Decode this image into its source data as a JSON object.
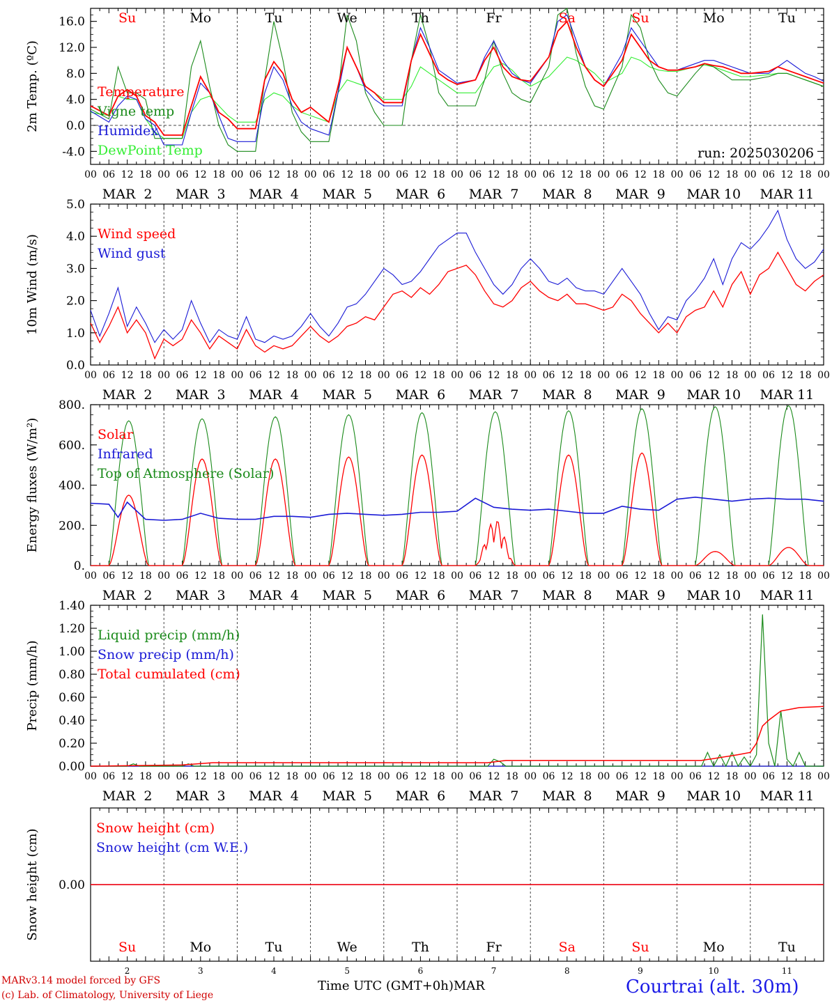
{
  "chart_data": [
    {
      "type": "line",
      "ylabel": "2m Temp. (ºC)",
      "ylim": [
        -6,
        18
      ],
      "y_ticks": [
        "-4.0",
        "0.0",
        "4.0",
        "8.0",
        "12.0",
        "16.0"
      ],
      "annotation": "run: 2025030206",
      "x_hours": [
        0,
        6,
        9,
        12,
        15,
        18,
        21,
        24,
        30,
        33,
        36,
        39,
        42,
        45,
        48,
        54,
        57,
        60,
        63,
        66,
        69,
        72,
        78,
        81,
        84,
        87,
        90,
        93,
        96,
        102,
        105,
        108,
        111,
        114,
        117,
        120,
        126,
        129,
        132,
        135,
        138,
        141,
        144,
        150,
        153,
        156,
        159,
        162,
        165,
        168,
        174,
        177,
        180,
        183,
        186,
        189,
        192,
        198,
        201,
        204,
        207,
        210,
        213,
        216,
        222,
        225,
        228,
        231,
        234,
        237,
        240
      ],
      "series": [
        {
          "name": "Temperature",
          "color": "#ff0000",
          "values": [
            3,
            1.5,
            4.5,
            5.5,
            4.5,
            1.5,
            0.5,
            -1.5,
            -1.5,
            3,
            7.5,
            5,
            2,
            1,
            -0.5,
            -0.5,
            7,
            9.8,
            8,
            4,
            2,
            2.8,
            0.5,
            6,
            12,
            9,
            6,
            5,
            3.5,
            3.5,
            10,
            14,
            11,
            8,
            7,
            6.3,
            7,
            10,
            12,
            9,
            7.5,
            7,
            6.8,
            10.5,
            14.5,
            16,
            12,
            9,
            7,
            6,
            10,
            14,
            12,
            10,
            9,
            8.5,
            8.5,
            9,
            9.5,
            9.2,
            9,
            8.5,
            8,
            8,
            8.3,
            9,
            8.5,
            8,
            7.5,
            7,
            6.5
          ]
        },
        {
          "name": "Vigne temp",
          "color": "#1a8a1a",
          "values": [
            2.5,
            1,
            9,
            5,
            5,
            4,
            -2,
            -2,
            -2,
            9,
            13,
            6,
            0,
            -3,
            -4,
            -4,
            7,
            16,
            10,
            2,
            -1,
            -2.5,
            -2.5,
            5,
            17,
            13,
            5,
            2,
            0,
            0,
            10,
            17,
            12,
            5,
            3,
            3,
            3,
            7,
            13,
            8,
            5,
            4,
            3.5,
            9,
            17,
            18,
            11,
            6,
            3,
            2.5,
            9,
            17,
            15,
            10,
            7,
            5,
            4.5,
            8,
            9.5,
            9,
            8,
            7,
            7,
            7,
            7.5,
            8,
            8,
            7.5,
            7,
            6.5,
            6
          ]
        },
        {
          "name": "Humidex",
          "color": "#1a1ad6",
          "values": [
            2.2,
            0.5,
            3,
            4.5,
            4,
            1,
            0,
            -3,
            -3,
            2,
            6.5,
            5,
            1.5,
            -2,
            -2.5,
            -2.5,
            5,
            9,
            7,
            3,
            0.5,
            -0.5,
            -1.5,
            5,
            12,
            9,
            5.5,
            4,
            3,
            3,
            10,
            15,
            12,
            8.5,
            7.5,
            6.5,
            7,
            10.5,
            13,
            10,
            8,
            7,
            6.5,
            10.5,
            16,
            17,
            13,
            9,
            7,
            6,
            11,
            15,
            13,
            11,
            9,
            8.5,
            8.5,
            9.5,
            10,
            10,
            9.5,
            9,
            8.5,
            8,
            8,
            9,
            10,
            9,
            8,
            7.5,
            6.8
          ]
        },
        {
          "name": "DewPoint Temp",
          "color": "#33ee33",
          "values": [
            2,
            1.5,
            4.5,
            4,
            4,
            1,
            -1,
            -2,
            -2,
            2,
            4,
            4.5,
            3,
            1.5,
            0.5,
            0.5,
            4,
            5,
            4.5,
            3,
            2,
            1.5,
            0.5,
            5,
            7,
            6.5,
            6,
            5,
            4,
            4,
            6,
            9,
            8,
            7,
            6,
            5,
            5,
            7,
            9,
            9.5,
            8.5,
            7,
            6,
            7.5,
            9,
            10.5,
            10,
            9,
            8,
            6.5,
            8,
            10.5,
            10,
            9,
            8.5,
            8.3,
            8.3,
            9,
            9.3,
            9,
            8.5,
            8,
            7.5,
            7.5,
            7.8,
            8,
            8,
            7.5,
            7,
            6.5,
            6
          ]
        }
      ]
    },
    {
      "type": "line",
      "ylabel": "10m Wind (m/s)",
      "ylim": [
        0,
        5
      ],
      "y_ticks": [
        "0.0",
        "1.0",
        "2.0",
        "3.0",
        "4.0",
        "5.0"
      ],
      "x_hours": [
        0,
        3,
        6,
        9,
        12,
        15,
        18,
        21,
        24,
        27,
        30,
        33,
        36,
        39,
        42,
        45,
        48,
        51,
        54,
        57,
        60,
        63,
        66,
        69,
        72,
        75,
        78,
        81,
        84,
        87,
        90,
        93,
        96,
        99,
        102,
        105,
        108,
        111,
        114,
        117,
        120,
        123,
        126,
        129,
        132,
        135,
        138,
        141,
        144,
        147,
        150,
        153,
        156,
        159,
        162,
        165,
        168,
        171,
        174,
        177,
        180,
        183,
        186,
        189,
        192,
        195,
        198,
        201,
        204,
        207,
        210,
        213,
        216,
        219,
        222,
        225,
        228,
        231,
        234,
        237,
        240
      ],
      "series": [
        {
          "name": "Wind speed",
          "color": "#ff0000",
          "values": [
            1.3,
            0.7,
            1.2,
            1.8,
            1.0,
            1.4,
            1.0,
            0.2,
            0.8,
            0.6,
            0.8,
            1.4,
            1.0,
            0.5,
            0.9,
            0.7,
            0.5,
            1.1,
            0.6,
            0.4,
            0.6,
            0.5,
            0.6,
            0.9,
            1.2,
            0.9,
            0.7,
            0.9,
            1.2,
            1.3,
            1.5,
            1.4,
            1.8,
            2.2,
            2.3,
            2.1,
            2.4,
            2.2,
            2.5,
            2.9,
            3.0,
            3.1,
            2.8,
            2.3,
            1.9,
            1.8,
            2.0,
            2.4,
            2.6,
            2.3,
            2.1,
            2.0,
            2.2,
            1.9,
            1.9,
            1.8,
            1.7,
            1.8,
            2.2,
            2.0,
            1.6,
            1.3,
            1.0,
            1.3,
            1.0,
            1.5,
            1.7,
            1.8,
            2.3,
            1.8,
            2.5,
            2.9,
            2.2,
            2.8,
            3.0,
            3.5,
            3.0,
            2.5,
            2.3,
            2.6,
            2.8
          ]
        },
        {
          "name": "Wind gust",
          "color": "#1a1ad6",
          "values": [
            1.7,
            0.9,
            1.6,
            2.4,
            1.2,
            1.8,
            1.3,
            0.7,
            1.1,
            0.8,
            1.1,
            2.0,
            1.3,
            0.7,
            1.1,
            0.9,
            0.8,
            1.5,
            0.8,
            0.7,
            0.9,
            0.8,
            0.9,
            1.2,
            1.6,
            1.2,
            0.9,
            1.3,
            1.8,
            1.9,
            2.2,
            2.6,
            3.0,
            2.8,
            2.5,
            2.6,
            2.9,
            3.3,
            3.7,
            3.9,
            4.1,
            4.1,
            3.5,
            3.0,
            2.5,
            2.2,
            2.5,
            3.0,
            3.3,
            3.0,
            2.6,
            2.5,
            2.7,
            2.4,
            2.3,
            2.3,
            2.2,
            2.6,
            3.0,
            2.6,
            2.2,
            1.6,
            1.1,
            1.5,
            1.4,
            2.0,
            2.3,
            2.7,
            3.3,
            2.5,
            3.3,
            3.8,
            3.6,
            3.9,
            4.3,
            4.8,
            3.9,
            3.3,
            3.0,
            3.2,
            3.6
          ]
        }
      ]
    },
    {
      "type": "line",
      "ylabel": "Energy fluxes (W/m²)",
      "ylim": [
        0,
        800
      ],
      "y_ticks": [
        "0.",
        "200.",
        "400.",
        "600.",
        "800."
      ],
      "solar_peak_hour": 12.5,
      "solar_half_width_hours": 6.5,
      "toa_peaks": [
        720,
        730,
        740,
        750,
        760,
        765,
        770,
        780,
        790,
        795
      ],
      "solar_peaks": [
        350,
        530,
        530,
        540,
        550,
        230,
        550,
        560,
        70,
        90
      ],
      "series": [
        {
          "name": "Solar",
          "color": "#ff0000"
        },
        {
          "name": "Infrared",
          "color": "#1a1ad6",
          "x_hours": [
            0,
            6,
            9,
            12,
            18,
            24,
            30,
            36,
            42,
            48,
            54,
            60,
            66,
            72,
            78,
            84,
            90,
            96,
            102,
            108,
            114,
            120,
            126,
            132,
            138,
            144,
            150,
            156,
            162,
            168,
            174,
            180,
            186,
            192,
            198,
            204,
            210,
            216,
            222,
            228,
            234,
            240
          ],
          "values": [
            310,
            305,
            240,
            315,
            230,
            225,
            230,
            260,
            235,
            230,
            230,
            245,
            245,
            240,
            255,
            260,
            255,
            250,
            255,
            265,
            265,
            270,
            335,
            290,
            280,
            275,
            280,
            270,
            260,
            260,
            295,
            280,
            275,
            330,
            340,
            330,
            320,
            330,
            335,
            330,
            330,
            320
          ]
        },
        {
          "name": "Top of Atmosphere (Solar)",
          "color": "#1a8a1a"
        }
      ]
    },
    {
      "type": "line",
      "ylabel": "Precip (mm/h)",
      "ylim": [
        0,
        1.4
      ],
      "y_ticks": [
        "0.00",
        "0.20",
        "0.40",
        "0.60",
        "0.80",
        "1.00",
        "1.20",
        "1.40"
      ],
      "series": [
        {
          "name": "Liquid precip (mm/h)",
          "color": "#1a8a1a",
          "x_hours": [
            0,
            12,
            14,
            16,
            18,
            30,
            32,
            34,
            40,
            130,
            132,
            134,
            136,
            200,
            202,
            204,
            206,
            208,
            210,
            212,
            214,
            216,
            218,
            220,
            222,
            224,
            226,
            228,
            230,
            232,
            234,
            236,
            240
          ],
          "values": [
            0,
            0,
            0.02,
            0,
            0,
            0,
            0.02,
            0,
            0,
            0,
            0.06,
            0.04,
            0,
            0,
            0.12,
            0,
            0.1,
            0,
            0.12,
            0,
            0.08,
            0,
            0.1,
            1.32,
            0.2,
            0,
            0.48,
            0.06,
            0,
            0.12,
            0,
            0,
            0
          ]
        },
        {
          "name": "Snow precip (mm/h)",
          "color": "#1a1ad6",
          "x_hours": [
            0,
            240
          ],
          "values": [
            0,
            0
          ]
        },
        {
          "name": "Total cumulated (cm)",
          "color": "#ff0000",
          "x_hours": [
            0,
            30,
            40,
            130,
            136,
            200,
            212,
            216,
            218,
            220,
            222,
            226,
            232,
            240
          ],
          "values": [
            0,
            0.01,
            0.03,
            0.03,
            0.05,
            0.05,
            0.1,
            0.12,
            0.2,
            0.35,
            0.4,
            0.48,
            0.51,
            0.52
          ]
        }
      ]
    },
    {
      "type": "line",
      "ylabel": "Snow height (cm)",
      "y_ticks": [
        "0.00"
      ],
      "series": [
        {
          "name": "Snow height (cm)",
          "color": "#ff0000",
          "x_hours": [
            0,
            240
          ],
          "values": [
            0,
            0
          ]
        },
        {
          "name": "Snow height (cm W.E.)",
          "color": "#1a1ad6",
          "x_hours": [
            0,
            240
          ],
          "values": [
            0,
            0
          ]
        }
      ]
    }
  ],
  "x_axis": {
    "hour_labels": [
      "00",
      "06",
      "12",
      "18"
    ],
    "date_labels": [
      "MAR  2",
      "MAR  3",
      "MAR  4",
      "MAR  5",
      "MAR  6",
      "MAR  7",
      "MAR  8",
      "MAR  9",
      "MAR 10",
      "MAR 11"
    ],
    "weekday_labels": [
      "Su",
      "Mo",
      "Tu",
      "We",
      "Th",
      "Fr",
      "Sa",
      "Su",
      "Mo",
      "Tu"
    ],
    "weekday_colors": [
      "#ff0000",
      "#000000",
      "#000000",
      "#000000",
      "#000000",
      "#000000",
      "#ff0000",
      "#ff0000",
      "#000000",
      "#000000"
    ],
    "day_numbers": [
      "2",
      "3",
      "4",
      "5",
      "6",
      "7",
      "8",
      "9",
      "10",
      "11"
    ],
    "xlabel": "Time UTC (GMT+0h)",
    "xlabel_month": "MAR"
  },
  "footer": {
    "model_line": "MARv3.14 model forced by GFS",
    "credit_line": "(c) Lab. of Climatology, University of Liege",
    "location": "Courtrai (alt. 30m)"
  }
}
